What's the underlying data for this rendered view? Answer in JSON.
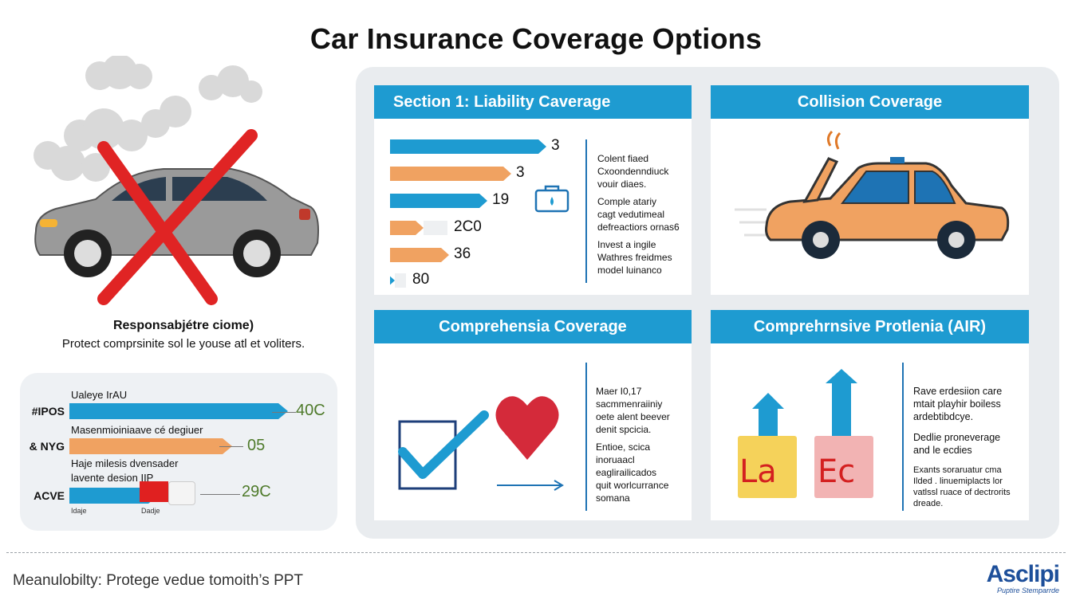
{
  "title": "Car Insurance Coverage Options",
  "left": {
    "responsibility_title": "Responsabjétre ciome)",
    "responsibility_sub": "Protect comprsinite sol le youse atl et voliters.",
    "chart": {
      "rows": [
        {
          "label": "#IPOS",
          "caption": "Ualeye IrAU",
          "value": "40C",
          "color": "#1e9bd1",
          "fill": 0.74
        },
        {
          "label": "& NYG",
          "caption": "Masenmioiniaave cé degiuer",
          "value": "05",
          "color": "#f0a261",
          "fill": 0.55
        },
        {
          "label": "ACVE",
          "caption": "Haje milesis dvensader",
          "caption2": "lavente desion IIP",
          "value": "29C",
          "color": "#1e9bd1",
          "fill": 0.3,
          "small1": "Idaje",
          "small2": "Dadje"
        }
      ]
    }
  },
  "cards": {
    "liability": {
      "title": "Section 1: Liability Caverage",
      "bars": [
        {
          "value": "3",
          "color": "#1e9bd1"
        },
        {
          "value": "3",
          "color": "#f0a261"
        },
        {
          "value": "19",
          "color": "#1e9bd1"
        },
        {
          "value": "2C0",
          "color": "#f0a261"
        },
        {
          "value": "36",
          "color": "#f0a261"
        },
        {
          "value": "80",
          "color": "#1e9bd1"
        }
      ],
      "text": [
        "Colent fiaed",
        "Cxoondenndiuck",
        "vouir diaes.",
        "Comple atariy",
        "cagt vedutimeal",
        "defreactiors ornas6",
        "Invest a ingile",
        "Wathres freidmes",
        "model luinanco"
      ]
    },
    "collision": {
      "title": "Collision Coverage"
    },
    "comprehensia": {
      "title": "Comprehensia Coverage",
      "text": [
        "Maer I0,17",
        "sacmmenraiiniy",
        "oete alent beever",
        "denit spcicia.",
        "Entioe, scica",
        "inoruaacl",
        "eaglirailicados",
        "quit worlcurrance",
        "somana"
      ]
    },
    "protlenia": {
      "title": "Comprehrnsive Protlenia (AIR)",
      "letters": [
        "La",
        "Ec"
      ],
      "text1": [
        "Rave erdesiion care",
        "mtait playhir boiless",
        "ardebtibdcye."
      ],
      "text2": [
        "Dedlie proneverage",
        "and le ecdies"
      ],
      "text3": [
        "Exants soraruatur cma",
        "Ilded . linuemiplacts lor",
        "vatlssl ruace of dectrorits",
        "dreade."
      ]
    }
  },
  "footer": "Meanulobilty: Protege vedue tomoith’s PPT",
  "logo": {
    "main": "Asclipi",
    "sub": "Puptire Stemparrde"
  }
}
